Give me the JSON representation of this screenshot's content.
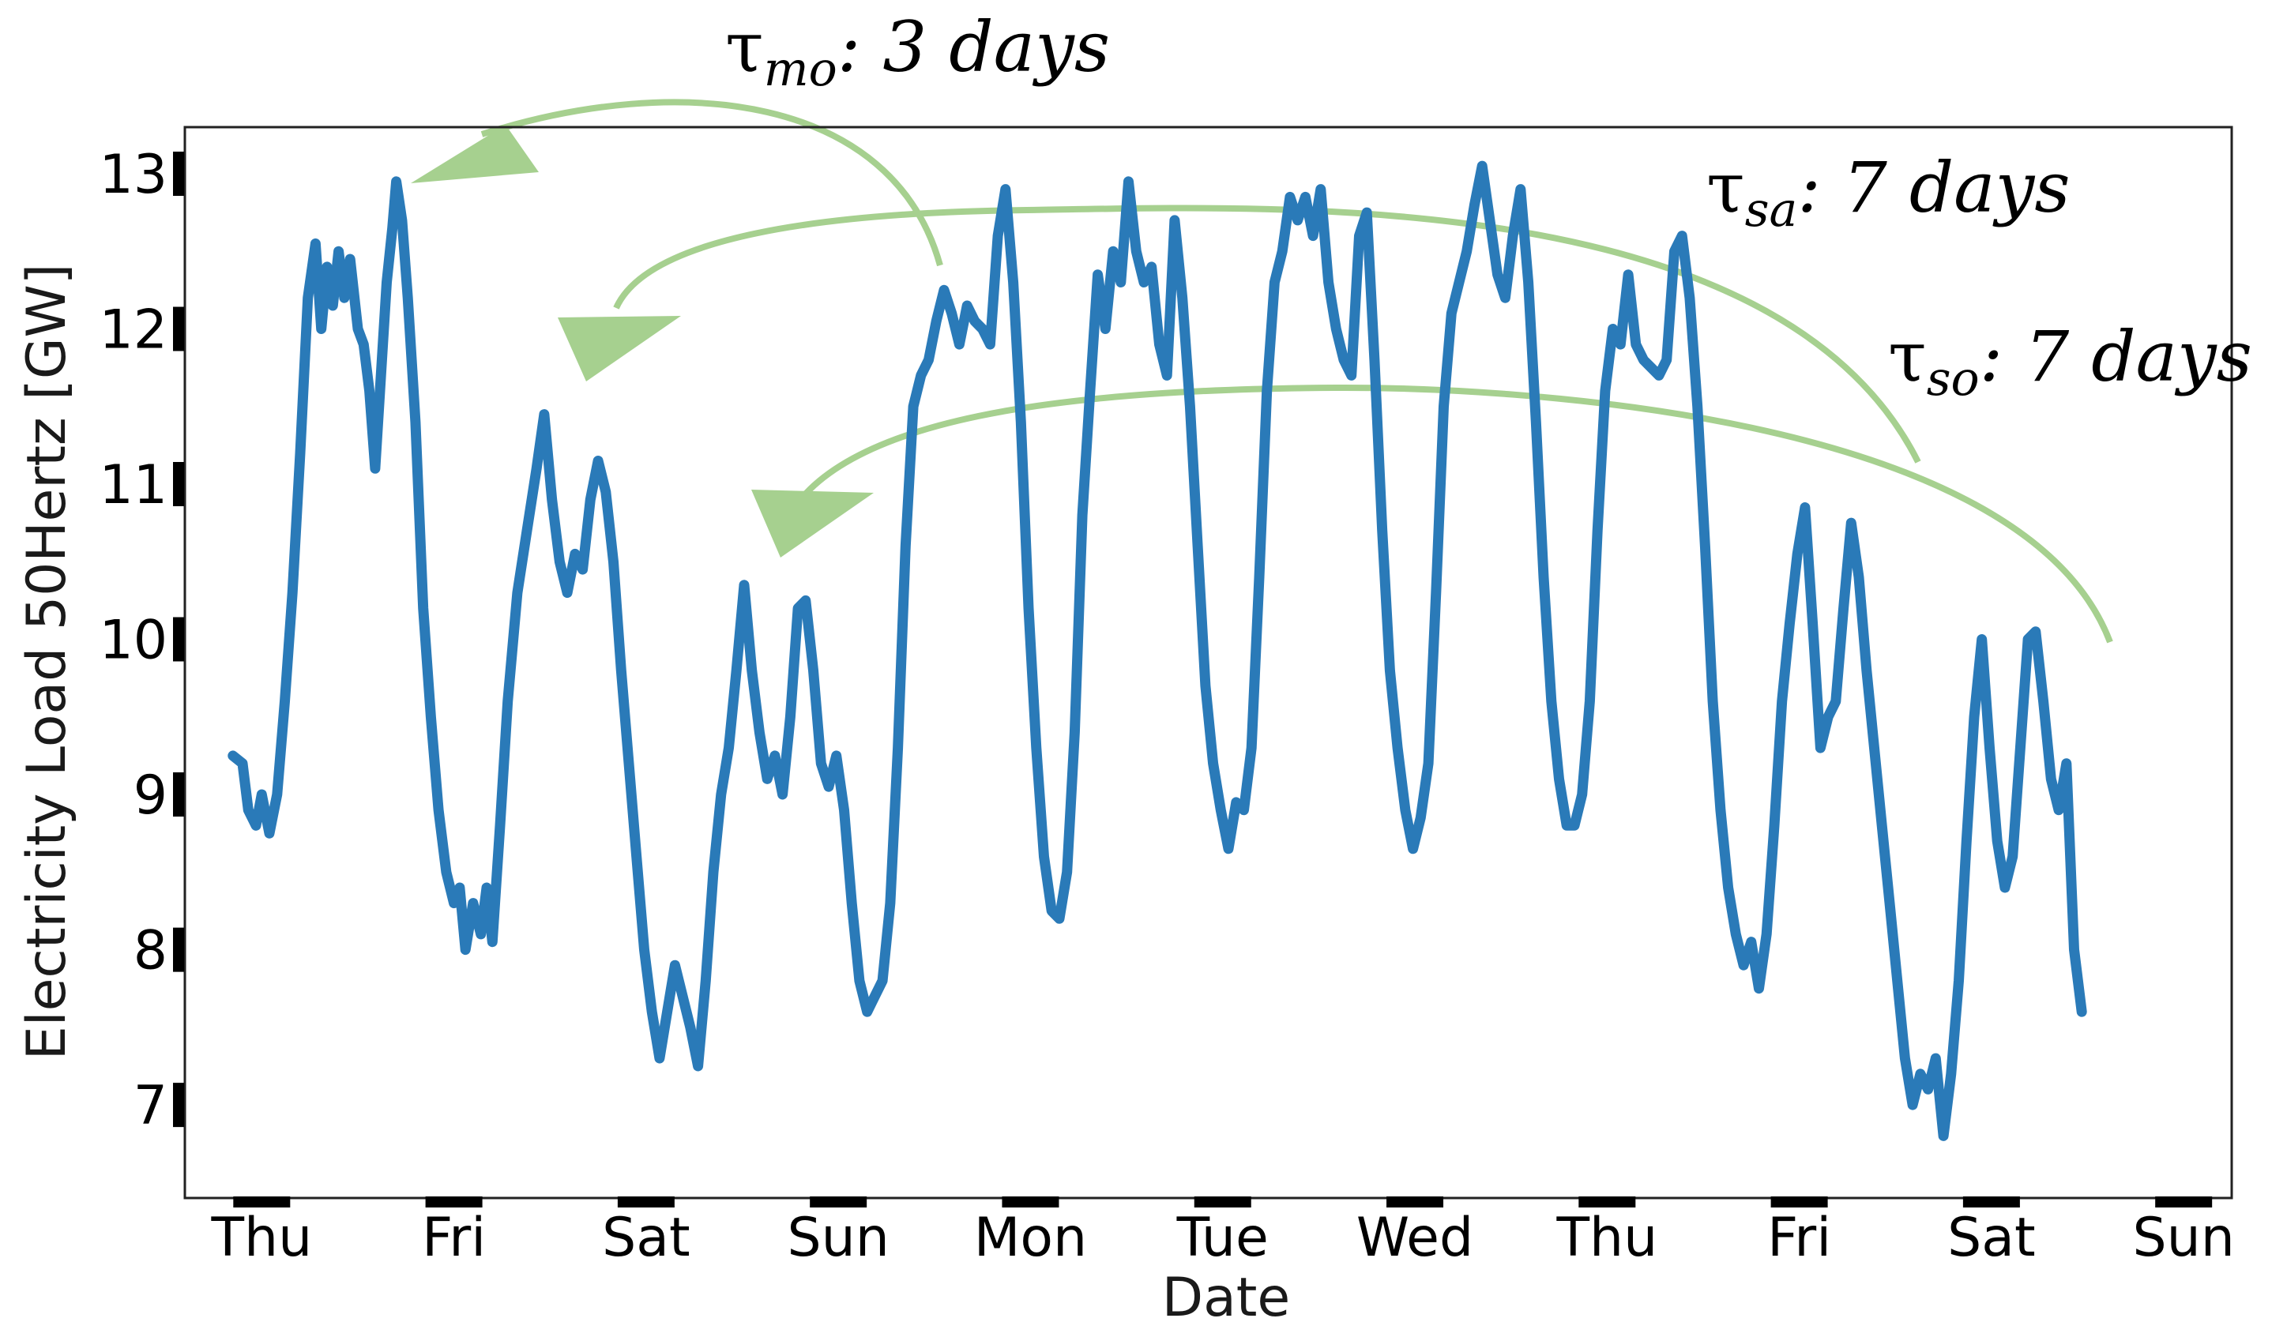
{
  "chart_data": {
    "type": "line",
    "title": "",
    "xlabel": "Date",
    "ylabel": "Electricity Load 50Hertz [GW]",
    "x_tick_labels": [
      "Thu",
      "Fri",
      "Sat",
      "Sun",
      "Mon",
      "Tue",
      "Wed",
      "Thu",
      "Fri",
      "Sat",
      "Sun"
    ],
    "y_ticks": [
      7,
      8,
      9,
      10,
      11,
      12,
      13
    ],
    "ylim": [
      6.4,
      13.3
    ],
    "xlim_days": [
      -0.4,
      10.25
    ],
    "grid": false,
    "series": [
      {
        "name": "Electricity Load 50Hertz",
        "color": "#2a7ab8",
        "points": [
          [
            -0.15,
            9.25
          ],
          [
            -0.1,
            9.2
          ],
          [
            -0.07,
            8.9
          ],
          [
            -0.03,
            8.8
          ],
          [
            0.0,
            9.0
          ],
          [
            0.04,
            8.75
          ],
          [
            0.08,
            9.0
          ],
          [
            0.12,
            9.6
          ],
          [
            0.16,
            10.3
          ],
          [
            0.2,
            11.2
          ],
          [
            0.24,
            12.2
          ],
          [
            0.28,
            12.55
          ],
          [
            0.31,
            12.0
          ],
          [
            0.34,
            12.4
          ],
          [
            0.37,
            12.15
          ],
          [
            0.4,
            12.5
          ],
          [
            0.43,
            12.2
          ],
          [
            0.46,
            12.45
          ],
          [
            0.5,
            12.0
          ],
          [
            0.53,
            11.9
          ],
          [
            0.56,
            11.6
          ],
          [
            0.59,
            11.1
          ],
          [
            0.62,
            11.7
          ],
          [
            0.65,
            12.3
          ],
          [
            0.68,
            12.65
          ],
          [
            0.7,
            12.95
          ],
          [
            0.73,
            12.7
          ],
          [
            0.76,
            12.2
          ],
          [
            0.8,
            11.4
          ],
          [
            0.84,
            10.2
          ],
          [
            0.88,
            9.5
          ],
          [
            0.92,
            8.9
          ],
          [
            0.96,
            8.5
          ],
          [
            1.0,
            8.3
          ],
          [
            1.03,
            8.4
          ],
          [
            1.06,
            8.0
          ],
          [
            1.1,
            8.3
          ],
          [
            1.14,
            8.1
          ],
          [
            1.17,
            8.4
          ],
          [
            1.2,
            8.05
          ],
          [
            1.24,
            8.8
          ],
          [
            1.28,
            9.6
          ],
          [
            1.33,
            10.3
          ],
          [
            1.38,
            10.7
          ],
          [
            1.43,
            11.1
          ],
          [
            1.47,
            11.45
          ],
          [
            1.51,
            10.9
          ],
          [
            1.55,
            10.5
          ],
          [
            1.59,
            10.3
          ],
          [
            1.63,
            10.55
          ],
          [
            1.67,
            10.45
          ],
          [
            1.71,
            10.9
          ],
          [
            1.75,
            11.15
          ],
          [
            1.79,
            10.95
          ],
          [
            1.83,
            10.5
          ],
          [
            1.87,
            9.8
          ],
          [
            1.91,
            9.2
          ],
          [
            1.95,
            8.6
          ],
          [
            1.99,
            8.0
          ],
          [
            2.03,
            7.6
          ],
          [
            2.07,
            7.3
          ],
          [
            2.11,
            7.6
          ],
          [
            2.15,
            7.9
          ],
          [
            2.19,
            7.7
          ],
          [
            2.23,
            7.5
          ],
          [
            2.27,
            7.25
          ],
          [
            2.31,
            7.8
          ],
          [
            2.35,
            8.5
          ],
          [
            2.39,
            9.0
          ],
          [
            2.43,
            9.3
          ],
          [
            2.47,
            9.8
          ],
          [
            2.51,
            10.35
          ],
          [
            2.55,
            9.8
          ],
          [
            2.59,
            9.4
          ],
          [
            2.63,
            9.1
          ],
          [
            2.67,
            9.25
          ],
          [
            2.71,
            9.0
          ],
          [
            2.75,
            9.5
          ],
          [
            2.79,
            10.2
          ],
          [
            2.83,
            10.25
          ],
          [
            2.87,
            9.8
          ],
          [
            2.91,
            9.2
          ],
          [
            2.95,
            9.05
          ],
          [
            2.99,
            9.25
          ],
          [
            3.03,
            8.9
          ],
          [
            3.07,
            8.3
          ],
          [
            3.11,
            7.8
          ],
          [
            3.15,
            7.6
          ],
          [
            3.19,
            7.7
          ],
          [
            3.23,
            7.8
          ],
          [
            3.27,
            8.3
          ],
          [
            3.31,
            9.3
          ],
          [
            3.35,
            10.6
          ],
          [
            3.39,
            11.5
          ],
          [
            3.43,
            11.7
          ],
          [
            3.47,
            11.8
          ],
          [
            3.51,
            12.05
          ],
          [
            3.55,
            12.25
          ],
          [
            3.59,
            12.1
          ],
          [
            3.63,
            11.9
          ],
          [
            3.67,
            12.15
          ],
          [
            3.71,
            12.05
          ],
          [
            3.75,
            12.0
          ],
          [
            3.79,
            11.9
          ],
          [
            3.83,
            12.6
          ],
          [
            3.87,
            12.9
          ],
          [
            3.91,
            12.3
          ],
          [
            3.95,
            11.4
          ],
          [
            3.99,
            10.2
          ],
          [
            4.03,
            9.3
          ],
          [
            4.07,
            8.6
          ],
          [
            4.11,
            8.25
          ],
          [
            4.15,
            8.2
          ],
          [
            4.19,
            8.5
          ],
          [
            4.23,
            9.4
          ],
          [
            4.27,
            10.8
          ],
          [
            4.31,
            11.6
          ],
          [
            4.35,
            12.35
          ],
          [
            4.39,
            12.0
          ],
          [
            4.43,
            12.5
          ],
          [
            4.47,
            12.3
          ],
          [
            4.51,
            12.95
          ],
          [
            4.55,
            12.5
          ],
          [
            4.59,
            12.3
          ],
          [
            4.63,
            12.4
          ],
          [
            4.67,
            11.9
          ],
          [
            4.71,
            11.7
          ],
          [
            4.75,
            12.7
          ],
          [
            4.79,
            12.2
          ],
          [
            4.83,
            11.5
          ],
          [
            4.87,
            10.6
          ],
          [
            4.91,
            9.7
          ],
          [
            4.95,
            9.2
          ],
          [
            4.99,
            8.9
          ],
          [
            5.03,
            8.65
          ],
          [
            5.07,
            8.95
          ],
          [
            5.11,
            8.9
          ],
          [
            5.15,
            9.3
          ],
          [
            5.19,
            10.4
          ],
          [
            5.23,
            11.6
          ],
          [
            5.27,
            12.3
          ],
          [
            5.31,
            12.5
          ],
          [
            5.35,
            12.85
          ],
          [
            5.39,
            12.7
          ],
          [
            5.43,
            12.85
          ],
          [
            5.47,
            12.6
          ],
          [
            5.51,
            12.9
          ],
          [
            5.55,
            12.3
          ],
          [
            5.59,
            12.0
          ],
          [
            5.63,
            11.8
          ],
          [
            5.67,
            11.7
          ],
          [
            5.71,
            12.6
          ],
          [
            5.75,
            12.75
          ],
          [
            5.79,
            11.8
          ],
          [
            5.83,
            10.7
          ],
          [
            5.87,
            9.8
          ],
          [
            5.91,
            9.3
          ],
          [
            5.95,
            8.9
          ],
          [
            5.99,
            8.65
          ],
          [
            6.03,
            8.85
          ],
          [
            6.07,
            9.2
          ],
          [
            6.11,
            10.3
          ],
          [
            6.15,
            11.5
          ],
          [
            6.19,
            12.1
          ],
          [
            6.23,
            12.3
          ],
          [
            6.27,
            12.5
          ],
          [
            6.31,
            12.8
          ],
          [
            6.35,
            13.05
          ],
          [
            6.39,
            12.7
          ],
          [
            6.43,
            12.35
          ],
          [
            6.47,
            12.2
          ],
          [
            6.51,
            12.6
          ],
          [
            6.55,
            12.9
          ],
          [
            6.59,
            12.3
          ],
          [
            6.63,
            11.4
          ],
          [
            6.67,
            10.4
          ],
          [
            6.71,
            9.6
          ],
          [
            6.75,
            9.1
          ],
          [
            6.79,
            8.8
          ],
          [
            6.83,
            8.8
          ],
          [
            6.87,
            9.0
          ],
          [
            6.91,
            9.6
          ],
          [
            6.95,
            10.7
          ],
          [
            6.99,
            11.6
          ],
          [
            7.03,
            12.0
          ],
          [
            7.07,
            11.9
          ],
          [
            7.11,
            12.35
          ],
          [
            7.15,
            11.9
          ],
          [
            7.19,
            11.8
          ],
          [
            7.23,
            11.75
          ],
          [
            7.27,
            11.7
          ],
          [
            7.31,
            11.8
          ],
          [
            7.35,
            12.5
          ],
          [
            7.39,
            12.6
          ],
          [
            7.43,
            12.2
          ],
          [
            7.47,
            11.5
          ],
          [
            7.51,
            10.6
          ],
          [
            7.55,
            9.6
          ],
          [
            7.59,
            8.9
          ],
          [
            7.63,
            8.4
          ],
          [
            7.67,
            8.1
          ],
          [
            7.71,
            7.9
          ],
          [
            7.75,
            8.05
          ],
          [
            7.79,
            7.75
          ],
          [
            7.83,
            8.1
          ],
          [
            7.87,
            8.8
          ],
          [
            7.91,
            9.6
          ],
          [
            7.95,
            10.1
          ],
          [
            7.99,
            10.55
          ],
          [
            8.03,
            10.85
          ],
          [
            8.07,
            10.1
          ],
          [
            8.11,
            9.3
          ],
          [
            8.15,
            9.5
          ],
          [
            8.19,
            9.6
          ],
          [
            8.23,
            10.2
          ],
          [
            8.27,
            10.75
          ],
          [
            8.31,
            10.4
          ],
          [
            8.35,
            9.8
          ],
          [
            8.39,
            9.3
          ],
          [
            8.43,
            8.8
          ],
          [
            8.47,
            8.3
          ],
          [
            8.51,
            7.8
          ],
          [
            8.55,
            7.3
          ],
          [
            8.59,
            7.0
          ],
          [
            8.63,
            7.2
          ],
          [
            8.67,
            7.1
          ],
          [
            8.71,
            7.3
          ],
          [
            8.75,
            6.8
          ],
          [
            8.79,
            7.2
          ],
          [
            8.83,
            7.8
          ],
          [
            8.87,
            8.7
          ],
          [
            8.91,
            9.5
          ],
          [
            8.95,
            10.0
          ],
          [
            8.99,
            9.3
          ],
          [
            9.03,
            8.7
          ],
          [
            9.07,
            8.4
          ],
          [
            9.11,
            8.6
          ],
          [
            9.15,
            9.3
          ],
          [
            9.19,
            10.0
          ],
          [
            9.23,
            10.05
          ],
          [
            9.27,
            9.6
          ],
          [
            9.31,
            9.1
          ],
          [
            9.35,
            8.9
          ],
          [
            9.39,
            9.2
          ],
          [
            9.43,
            8.0
          ],
          [
            9.47,
            7.6
          ]
        ]
      }
    ],
    "annotations": [
      {
        "tau": "τ",
        "sub": "mo",
        "rest": ": 3 days"
      },
      {
        "tau": "τ",
        "sub": "sa",
        "rest": ": 7 days"
      },
      {
        "tau": "τ",
        "sub": "so",
        "rest": ": 7 days"
      }
    ],
    "annotation_color": "#a6d08f"
  }
}
